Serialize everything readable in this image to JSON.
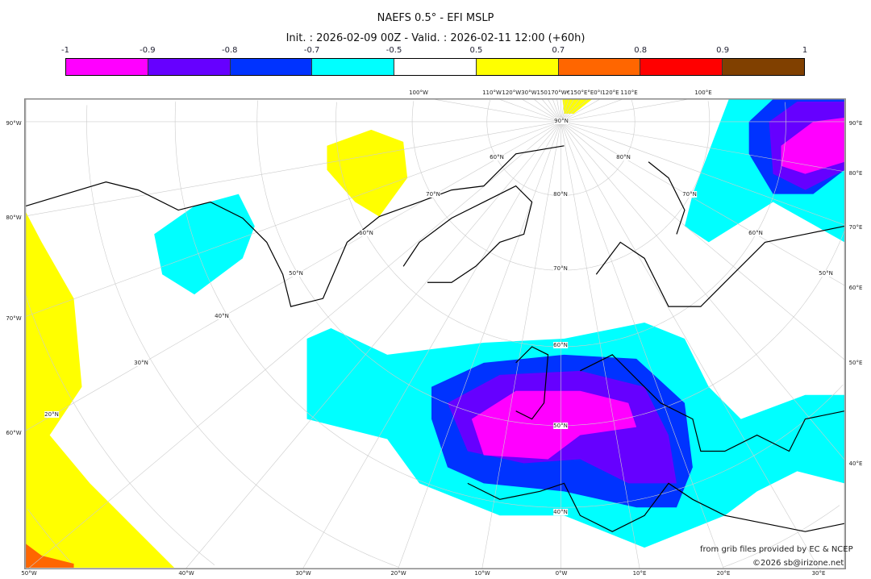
{
  "title": "NAEFS 0.5° - EFI MSLP",
  "subtitle": "Init. : 2026-02-09 00Z - Valid. : 2026-02-11 12:00 (+60h)",
  "colorbar": {
    "ticks": [
      "-1",
      "-0.9",
      "-0.8",
      "-0.7",
      "-0.5",
      "0.5",
      "0.7",
      "0.8",
      "0.9",
      "1"
    ],
    "colors": [
      "#ff00ff",
      "#6600ff",
      "#0033ff",
      "#00ffff",
      "#ffffff",
      "#ffff00",
      "#ff6600",
      "#ff0000",
      "#804000"
    ]
  },
  "axes": {
    "left": [
      "90°W",
      "80°W",
      "70°W",
      "60°W"
    ],
    "right": [
      "90°E",
      "80°E",
      "70°E",
      "60°E",
      "50°E",
      "40°E"
    ],
    "bottom": [
      "50°W",
      "40°W",
      "30°W",
      "20°W",
      "10°W",
      "0°W",
      "10°E",
      "20°E",
      "30°E"
    ],
    "top": [
      "100°W",
      "110°W",
      "120°W30°W150170°W€150°E°E0°I120°E",
      "110°E",
      "100°E"
    ]
  },
  "lat_labels": [
    "90°N",
    "80°N",
    "70°N",
    "60°N",
    "50°N",
    "40°N",
    "60°N",
    "70°N",
    "60°N",
    "50°N",
    "40°N",
    "30°N",
    "20°N",
    "80°N",
    "70°N",
    "60°N",
    "50°N"
  ],
  "credits": {
    "source": "from grib files provided by EC & NCEP",
    "copyright": "©2026 sb@irizone.net"
  }
}
